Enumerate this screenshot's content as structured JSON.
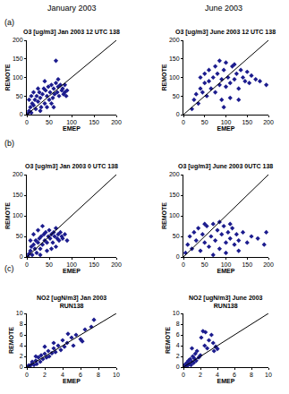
{
  "column_headers": [
    "January 2003",
    "June 2003"
  ],
  "panel_labels": [
    "(a)",
    "(b)",
    "(c)"
  ],
  "chart_data": [
    {
      "type": "scatter",
      "title": "O3 [ug/m3] Jan 2003 12 UTC 138",
      "xlabel": "EMEP",
      "ylabel": "REMOTE",
      "xlim": [
        0,
        200
      ],
      "ylim": [
        0,
        200
      ],
      "xticks": [
        0,
        50,
        100,
        150,
        200
      ],
      "yticks": [
        0,
        50,
        100,
        150,
        200
      ],
      "grid": false,
      "series": [
        {
          "color": "#1c1c8e",
          "marker": "diamond",
          "x": [
            2,
            5,
            8,
            10,
            12,
            15,
            18,
            20,
            22,
            25,
            28,
            30,
            32,
            35,
            38,
            40,
            42,
            45,
            48,
            50,
            52,
            55,
            58,
            60,
            62,
            65,
            68,
            70,
            72,
            75,
            78,
            80,
            82,
            85,
            88,
            90,
            15,
            25,
            5,
            45,
            55,
            65,
            30,
            70,
            40,
            85,
            10,
            60
          ],
          "y": [
            3,
            10,
            20,
            5,
            30,
            25,
            40,
            15,
            50,
            35,
            60,
            45,
            20,
            55,
            70,
            30,
            65,
            50,
            75,
            40,
            60,
            80,
            45,
            70,
            55,
            85,
            60,
            75,
            50,
            80,
            65,
            70,
            55,
            60,
            50,
            65,
            60,
            70,
            40,
            20,
            30,
            145,
            10,
            95,
            90,
            80,
            50,
            20
          ]
        },
        {
          "type": "line",
          "color": "#000000",
          "x": [
            0,
            200
          ],
          "y": [
            0,
            200
          ]
        }
      ]
    },
    {
      "type": "scatter",
      "title": "O3 [ug/m3] June 2003 12 UTC 138",
      "xlabel": "EMEP",
      "ylabel": "REMOTE",
      "xlim": [
        0,
        200
      ],
      "ylim": [
        0,
        200
      ],
      "xticks": [
        0,
        50,
        100,
        150,
        200
      ],
      "yticks": [
        0,
        50,
        100,
        150,
        200
      ],
      "grid": false,
      "series": [
        {
          "color": "#1c1c8e",
          "marker": "diamond",
          "x": [
            20,
            25,
            30,
            35,
            40,
            45,
            50,
            55,
            60,
            65,
            70,
            75,
            80,
            85,
            90,
            95,
            100,
            100,
            105,
            110,
            115,
            120,
            125,
            130,
            135,
            140,
            145,
            150,
            155,
            160,
            170,
            180,
            195,
            60,
            75,
            90,
            110,
            50,
            120,
            85,
            95,
            130,
            40
          ],
          "y": [
            15,
            40,
            55,
            30,
            70,
            60,
            85,
            50,
            90,
            70,
            100,
            60,
            110,
            80,
            95,
            120,
            75,
            140,
            100,
            85,
            130,
            95,
            110,
            70,
            120,
            100,
            90,
            115,
            85,
            105,
            95,
            90,
            80,
            120,
            130,
            40,
            45,
            110,
            135,
            145,
            20,
            40,
            100
          ]
        },
        {
          "type": "line",
          "color": "#000000",
          "x": [
            0,
            200
          ],
          "y": [
            0,
            200
          ]
        }
      ]
    },
    {
      "type": "scatter",
      "title": "O3 [ug/m3] Jan 2003 0 UTC 138",
      "xlabel": "EMEP",
      "ylabel": "REMOTE",
      "xlim": [
        0,
        200
      ],
      "ylim": [
        0,
        200
      ],
      "xticks": [
        0,
        50,
        100,
        150,
        200
      ],
      "yticks": [
        0,
        50,
        100,
        150,
        200
      ],
      "grid": false,
      "series": [
        {
          "color": "#1c1c8e",
          "marker": "diamond",
          "x": [
            2,
            5,
            8,
            10,
            12,
            15,
            18,
            20,
            22,
            25,
            28,
            30,
            32,
            35,
            38,
            40,
            42,
            45,
            48,
            50,
            52,
            55,
            58,
            60,
            62,
            65,
            68,
            70,
            72,
            75,
            78,
            80,
            85,
            90,
            15,
            25,
            35,
            45,
            55,
            8,
            30,
            65
          ],
          "y": [
            2,
            8,
            15,
            25,
            5,
            30,
            20,
            40,
            10,
            35,
            45,
            20,
            50,
            30,
            55,
            40,
            60,
            35,
            50,
            65,
            45,
            55,
            35,
            60,
            50,
            70,
            45,
            55,
            40,
            60,
            50,
            45,
            55,
            40,
            55,
            65,
            75,
            15,
            20,
            40,
            5,
            25
          ]
        },
        {
          "type": "line",
          "color": "#000000",
          "x": [
            0,
            200
          ],
          "y": [
            0,
            200
          ]
        }
      ]
    },
    {
      "type": "scatter",
      "title": "O3 [ug/m3] June 2003 0UTC 138",
      "xlabel": "EMEP",
      "ylabel": "REMOTE",
      "xlim": [
        0,
        200
      ],
      "ylim": [
        0,
        200
      ],
      "xticks": [
        0,
        50,
        100,
        150,
        200
      ],
      "yticks": [
        0,
        50,
        100,
        150,
        200
      ],
      "grid": false,
      "series": [
        {
          "color": "#1c1c8e",
          "marker": "diamond",
          "x": [
            5,
            10,
            15,
            20,
            25,
            30,
            35,
            40,
            45,
            50,
            55,
            60,
            65,
            70,
            75,
            80,
            85,
            90,
            95,
            100,
            105,
            110,
            115,
            120,
            125,
            130,
            140,
            150,
            160,
            175,
            190,
            195,
            70,
            100,
            130,
            50,
            110,
            85
          ],
          "y": [
            10,
            30,
            50,
            20,
            60,
            40,
            70,
            15,
            55,
            35,
            75,
            25,
            50,
            80,
            40,
            65,
            20,
            55,
            75,
            35,
            60,
            45,
            70,
            30,
            55,
            40,
            60,
            35,
            50,
            45,
            30,
            60,
            5,
            10,
            15,
            80,
            80,
            85
          ]
        },
        {
          "type": "line",
          "color": "#000000",
          "x": [
            0,
            200
          ],
          "y": [
            0,
            200
          ]
        }
      ]
    },
    {
      "type": "scatter",
      "title": [
        "NO2 [ugN/m3] Jan 2003",
        "RUN138"
      ],
      "xlabel": "EMEP",
      "ylabel": "REMOTE",
      "xlim": [
        0,
        10
      ],
      "ylim": [
        0,
        10
      ],
      "xticks": [
        0,
        2,
        4,
        6,
        8,
        10
      ],
      "yticks": [
        0,
        2,
        4,
        6,
        8,
        10
      ],
      "grid": false,
      "series": [
        {
          "color": "#1c1c8e",
          "marker": "diamond",
          "x": [
            0.2,
            0.3,
            0.5,
            0.6,
            0.8,
            1.0,
            1.1,
            1.3,
            1.5,
            1.6,
            1.8,
            2.0,
            2.2,
            2.4,
            2.5,
            2.8,
            3.0,
            3.2,
            3.5,
            3.8,
            4.0,
            4.2,
            4.5,
            4.6,
            5.0,
            5.2,
            5.5,
            6.0,
            6.2,
            6.5,
            7.2,
            7.5,
            3.0,
            1.0,
            2.0
          ],
          "y": [
            0.3,
            0.1,
            0.5,
            1.0,
            0.4,
            1.2,
            0.6,
            1.8,
            1.0,
            2.2,
            1.5,
            2.5,
            1.8,
            3.0,
            2.0,
            2.6,
            3.5,
            2.8,
            4.0,
            3.2,
            5.0,
            3.8,
            4.5,
            6.2,
            5.5,
            4.0,
            6.0,
            5.2,
            4.8,
            7.0,
            7.5,
            8.8,
            4.5,
            2.0,
            3.8
          ]
        },
        {
          "type": "line",
          "color": "#000000",
          "x": [
            0,
            10
          ],
          "y": [
            0,
            10
          ]
        }
      ]
    },
    {
      "type": "scatter",
      "title": [
        "NO2 [ugN/m3] June 2003",
        "RUN138"
      ],
      "xlabel": "EMEP",
      "ylabel": "REMOTE",
      "xlim": [
        0,
        10
      ],
      "ylim": [
        0,
        10
      ],
      "xticks": [
        0,
        2,
        4,
        6,
        8,
        10
      ],
      "yticks": [
        0,
        2,
        4,
        6,
        8,
        10
      ],
      "grid": false,
      "series": [
        {
          "color": "#1c1c8e",
          "marker": "diamond",
          "x": [
            0.1,
            0.2,
            0.3,
            0.4,
            0.5,
            0.6,
            0.7,
            0.8,
            0.9,
            1.0,
            1.1,
            1.2,
            1.3,
            1.4,
            1.5,
            1.6,
            1.8,
            2.0,
            2.1,
            2.3,
            2.5,
            2.6,
            2.8,
            3.0,
            3.3,
            3.5,
            3.6,
            3.8,
            4.0,
            1.0
          ],
          "y": [
            0.2,
            0.5,
            0.1,
            0.8,
            0.3,
            1.2,
            0.6,
            1.5,
            0.4,
            1.0,
            2.0,
            0.8,
            1.6,
            2.5,
            1.2,
            3.0,
            1.8,
            2.2,
            5.5,
            6.7,
            4.0,
            6.5,
            3.5,
            5.0,
            6.0,
            4.5,
            3.0,
            3.8,
            3.4,
            3.5
          ]
        },
        {
          "type": "line",
          "color": "#000000",
          "x": [
            0,
            10
          ],
          "y": [
            0,
            10
          ]
        }
      ]
    }
  ]
}
